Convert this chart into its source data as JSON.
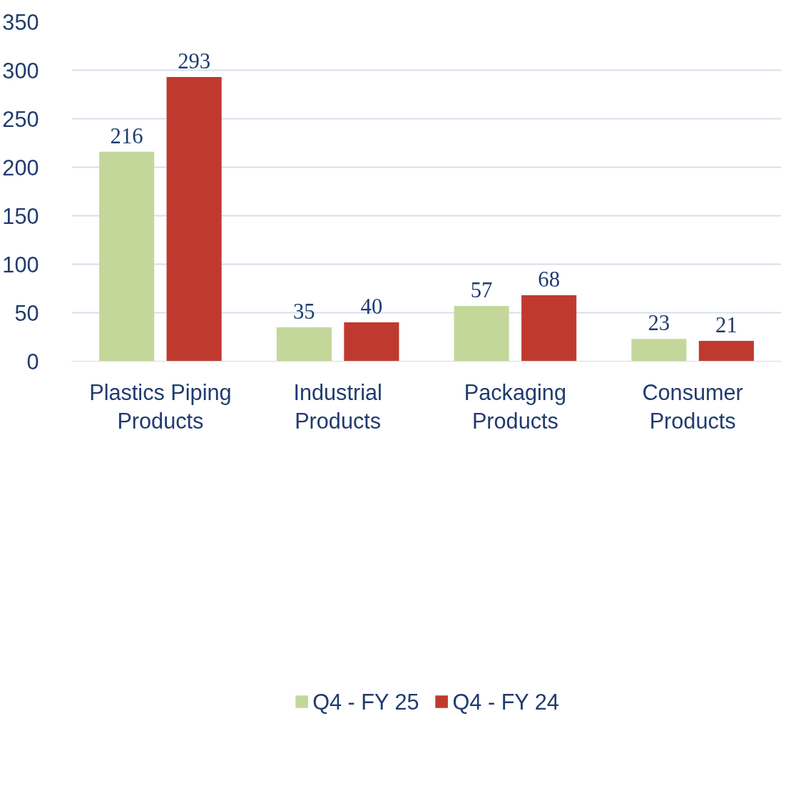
{
  "chart_data": {
    "type": "bar",
    "categories": [
      "Plastics Piping Products",
      "Industrial Products",
      "Packaging Products",
      "Consumer Products"
    ],
    "series": [
      {
        "name": "Q4 - FY 25",
        "color": "#c4d79b",
        "values": [
          216,
          35,
          57,
          23
        ]
      },
      {
        "name": "Q4 - FY 24",
        "color": "#c0392f",
        "values": [
          293,
          40,
          68,
          21
        ]
      }
    ],
    "ylim": [
      0,
      350
    ],
    "yticks": [
      0,
      50,
      100,
      150,
      200,
      250,
      300,
      350
    ],
    "grid": "y",
    "legend": "bottom",
    "data_labels": true
  }
}
